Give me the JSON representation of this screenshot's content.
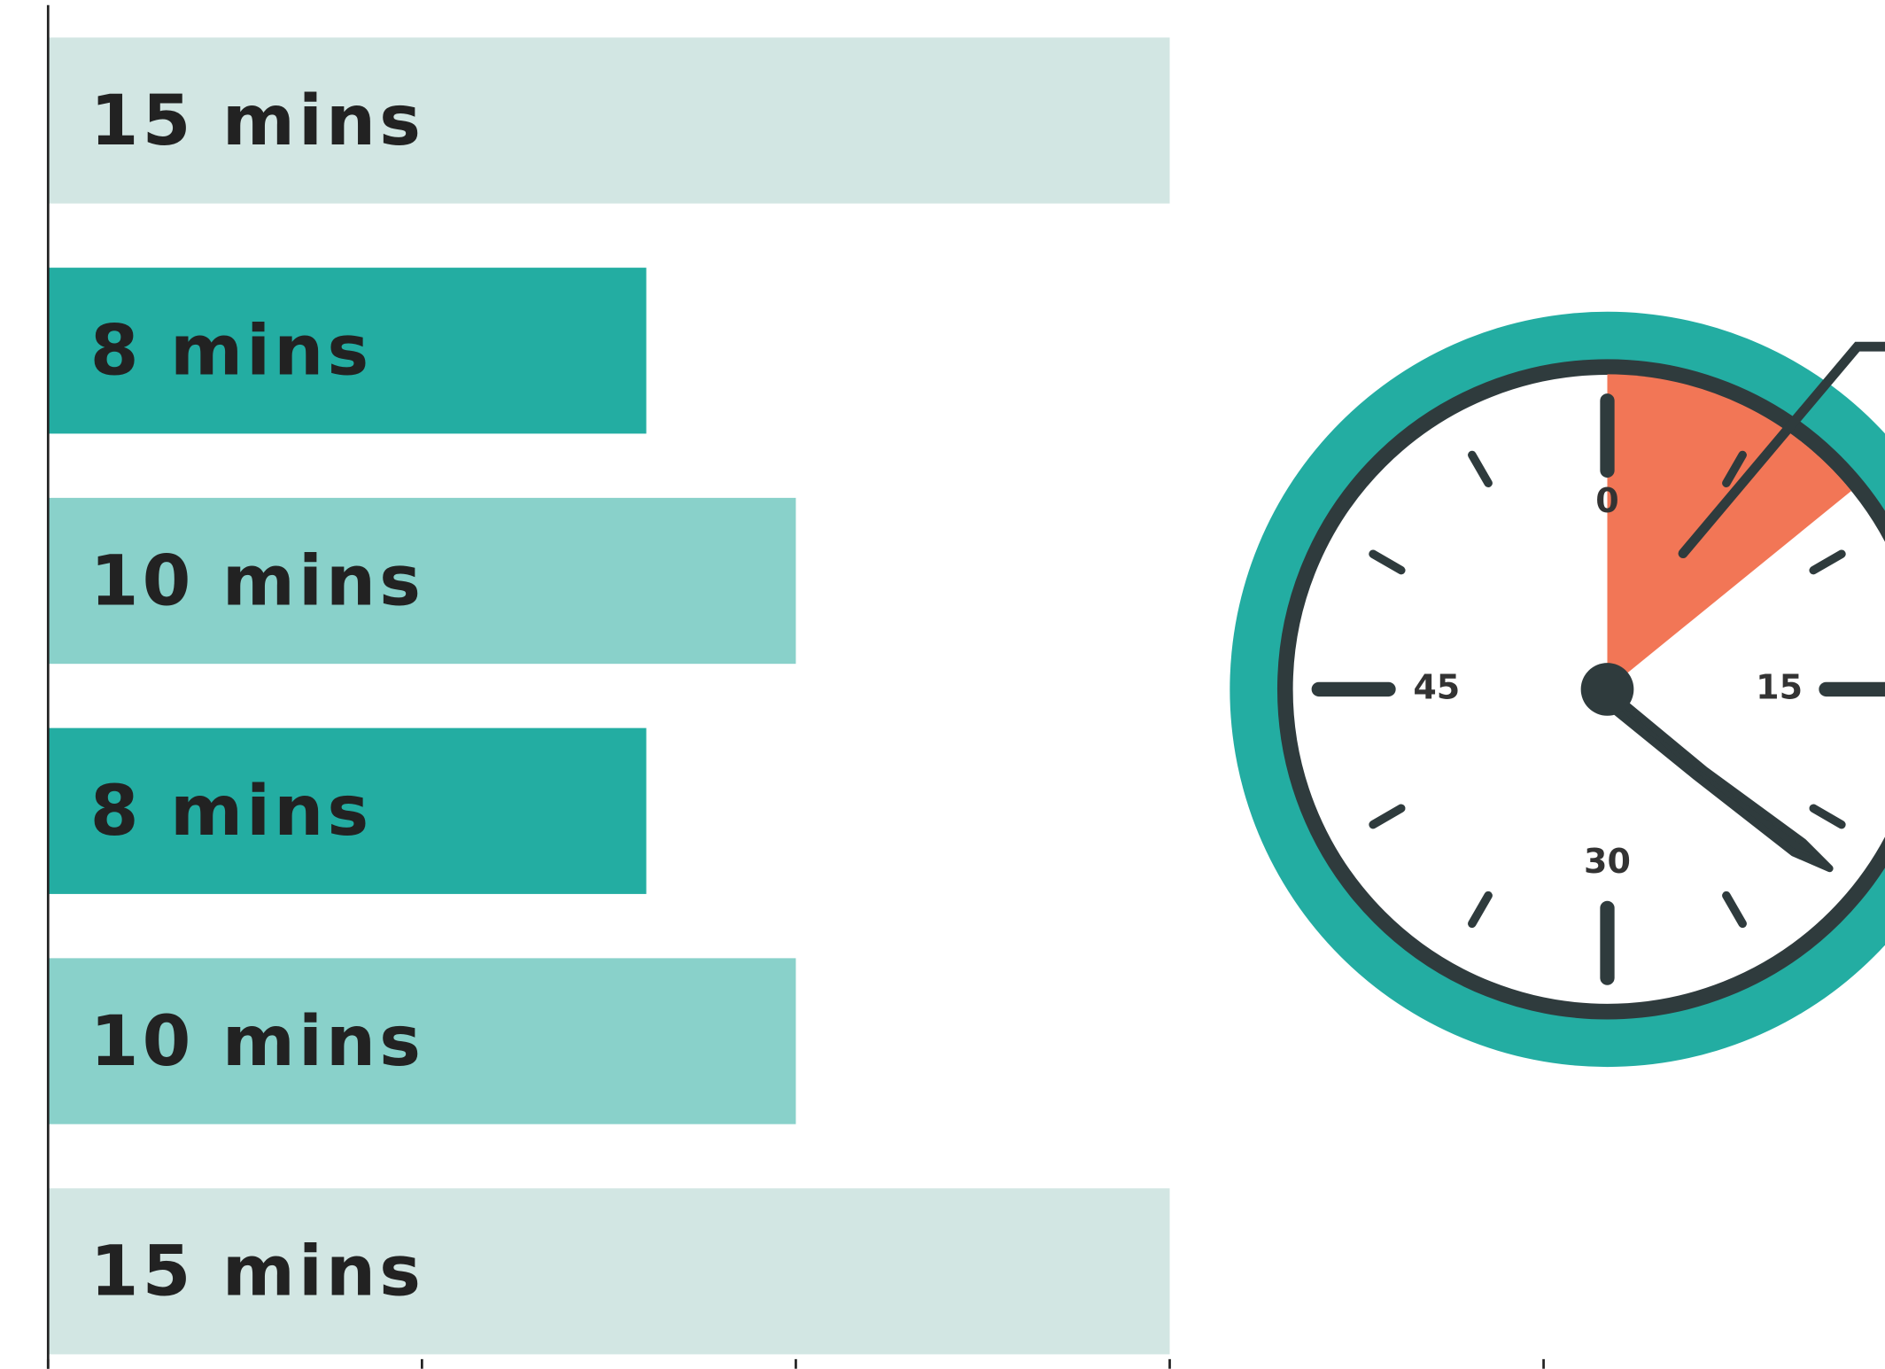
{
  "chart_data": {
    "type": "bar",
    "orientation": "horizontal",
    "categories": [
      null,
      null,
      null,
      null,
      null,
      null
    ],
    "values": [
      15,
      8,
      10,
      8,
      10,
      15
    ],
    "value_labels": [
      "15 mins",
      "8 mins",
      "10 mins",
      "8 mins",
      "10 mins",
      "15 mins"
    ],
    "colors": [
      "#d2e6e3",
      "#23ada2",
      "#89d1ca",
      "#23ada2",
      "#89d1ca",
      "#d2e6e3"
    ],
    "xlim": [
      0,
      20
    ],
    "xticks": [
      0,
      5,
      10,
      15,
      20
    ],
    "annotations": [
      "0",
      "15",
      "30",
      "45"
    ]
  }
}
